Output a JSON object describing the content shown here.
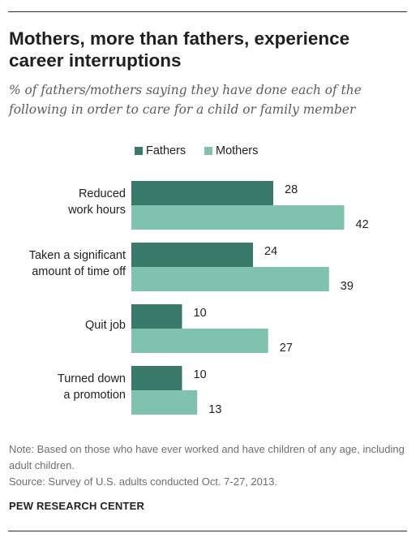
{
  "title": "Mothers, more than fathers, experience career interruptions",
  "subtitle": "% of fathers/mothers saying they have done each of the following in order to care for a child or family member",
  "note_lines": [
    "Note: Based on those who have ever worked and have children of any age, including adult children.",
    "Source: Survey of U.S. adults conducted Oct. 7-27, 2013."
  ],
  "source_org": "PEW RESEARCH CENTER",
  "colors": {
    "fathers": "#3a7a6a",
    "mothers": "#7fc3ae",
    "text": "#222222",
    "note": "#6f6f6f"
  },
  "chart_data": {
    "type": "bar",
    "orientation": "horizontal",
    "categories": [
      [
        "Reduced",
        "work hours"
      ],
      [
        "Taken a significant",
        "amount of time off"
      ],
      [
        "Quit job"
      ],
      [
        "Turned down",
        "a promotion"
      ]
    ],
    "series": [
      {
        "name": "Fathers",
        "values": [
          28,
          24,
          10,
          10
        ],
        "color": "#3a7a6a"
      },
      {
        "name": "Mothers",
        "values": [
          42,
          39,
          27,
          13
        ],
        "color": "#7fc3ae"
      }
    ],
    "xlim": [
      0,
      42
    ],
    "legend": "top",
    "grid": false,
    "data_labels": true
  }
}
